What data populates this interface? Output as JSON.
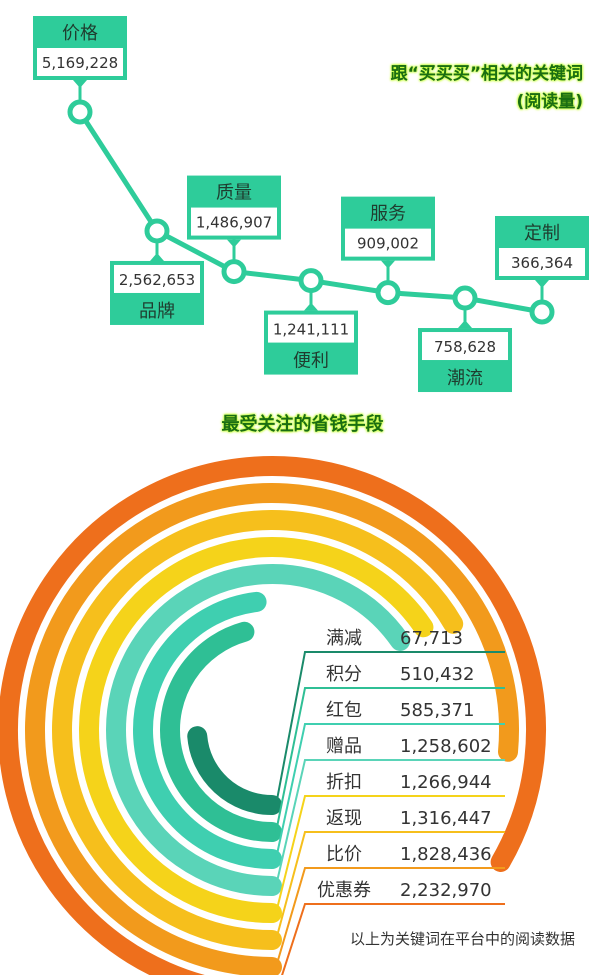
{
  "colors": {
    "accent": "#2ecc9a",
    "title_fill": "#1a6e12",
    "title_glow": "#c9ff3a",
    "text_dark": "#333333"
  },
  "chart_data": [
    {
      "type": "line",
      "title": "跟“买买买”相关的关键词",
      "subtitle": "(阅读量)",
      "categories": [
        "价格",
        "品牌",
        "质量",
        "便利",
        "服务",
        "潮流",
        "定制"
      ],
      "value_labels": [
        "5,169,228",
        "2,562,653",
        "1,486,907",
        "1,241,111",
        "909,002",
        "758,628",
        "366,364"
      ],
      "values": [
        5169228,
        2562653,
        1486907,
        1241111,
        909002,
        758628,
        366364
      ],
      "label_positions": [
        "above",
        "below",
        "above",
        "below",
        "above",
        "below",
        "above"
      ]
    },
    {
      "type": "bar",
      "style": "radial",
      "title": "最受关注的省钱手段",
      "categories": [
        "满减",
        "积分",
        "红包",
        "赠品",
        "折扣",
        "返现",
        "比价",
        "优惠券"
      ],
      "value_labels": [
        "67,713",
        "510,432",
        "585,371",
        "1,258,602",
        "1,266,944",
        "1,316,447",
        "1,828,436",
        "2,232,970"
      ],
      "values": [
        67713,
        510432,
        585371,
        1258602,
        1266944,
        1316447,
        1828436,
        2232970
      ],
      "colors": [
        "#1a8a6a",
        "#2fbf95",
        "#3fcfb0",
        "#5ad4b8",
        "#f5d31a",
        "#f6bf1c",
        "#f29a1c",
        "#ee6f1c"
      ]
    }
  ],
  "footer": {
    "note": "以上为关键词在平台中的阅读数据"
  }
}
